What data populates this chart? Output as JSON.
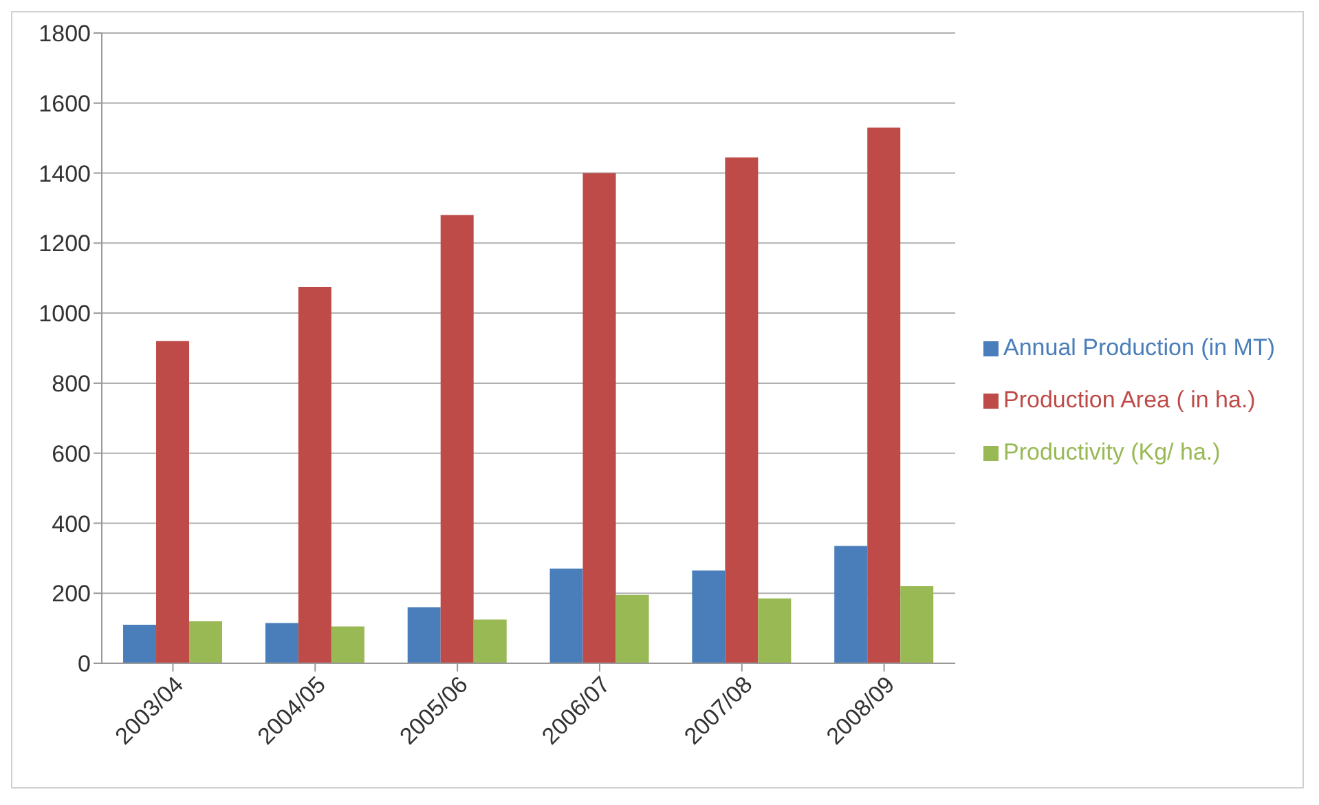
{
  "chart_data": {
    "type": "bar",
    "categories": [
      "2003/04",
      "2004/05",
      "2005/06",
      "2006/07",
      "2007/08",
      "2008/09"
    ],
    "series": [
      {
        "name": "Annual Production (in MT)",
        "color": "#4a7ebb",
        "values": [
          110,
          115,
          160,
          270,
          265,
          335
        ]
      },
      {
        "name": "Production Area ( in ha.)",
        "color": "#be4b48",
        "values": [
          920,
          1075,
          1280,
          1400,
          1445,
          1530
        ]
      },
      {
        "name": "Productivity (Kg/ ha.)",
        "color": "#98b954",
        "values": [
          120,
          105,
          125,
          195,
          185,
          220
        ]
      }
    ],
    "ylim": [
      0,
      1800
    ],
    "yticks": [
      0,
      200,
      400,
      600,
      800,
      1000,
      1200,
      1400,
      1600,
      1800
    ],
    "grid": "y",
    "legend": "right"
  }
}
